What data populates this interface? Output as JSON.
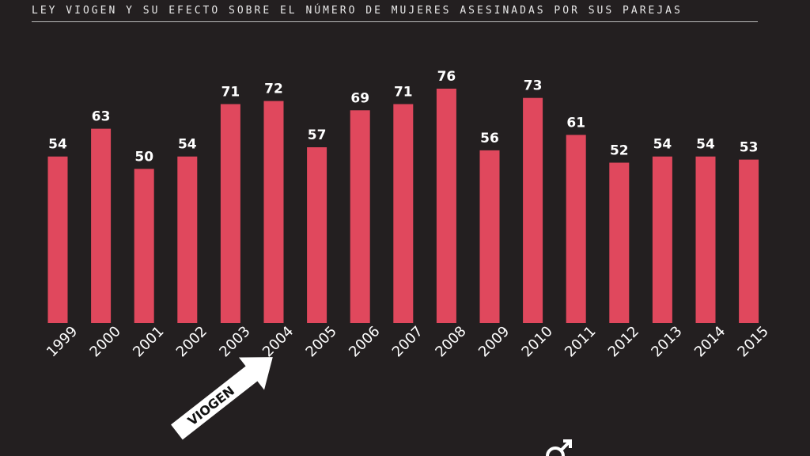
{
  "title": "LEY VIOGEN Y SU EFECTO SOBRE EL NÚMERO DE MUJERES ASESINADAS POR SUS PAREJAS",
  "colors": {
    "background": "#231f20",
    "bar": "#e0485d",
    "text": "#ffffff",
    "arrow": "#ffffff"
  },
  "annotation": {
    "label": "VIOGEN",
    "icon": "male-symbol-icon"
  },
  "chart_data": {
    "type": "bar",
    "title": "LEY VIOGEN Y SU EFECTO SOBRE EL NÚMERO DE MUJERES ASESINADAS POR SUS PAREJAS",
    "categories": [
      "1999",
      "2000",
      "2001",
      "2002",
      "2003",
      "2004",
      "2005",
      "2006",
      "2007",
      "2008",
      "2009",
      "2010",
      "2011",
      "2012",
      "2013",
      "2014",
      "2015"
    ],
    "values": [
      54,
      63,
      50,
      54,
      71,
      72,
      57,
      69,
      71,
      76,
      56,
      73,
      61,
      52,
      54,
      54,
      53
    ],
    "xlabel": "",
    "ylabel": "",
    "ylim": [
      0,
      80
    ],
    "grid": false,
    "legend": "none",
    "data_labels": true
  }
}
